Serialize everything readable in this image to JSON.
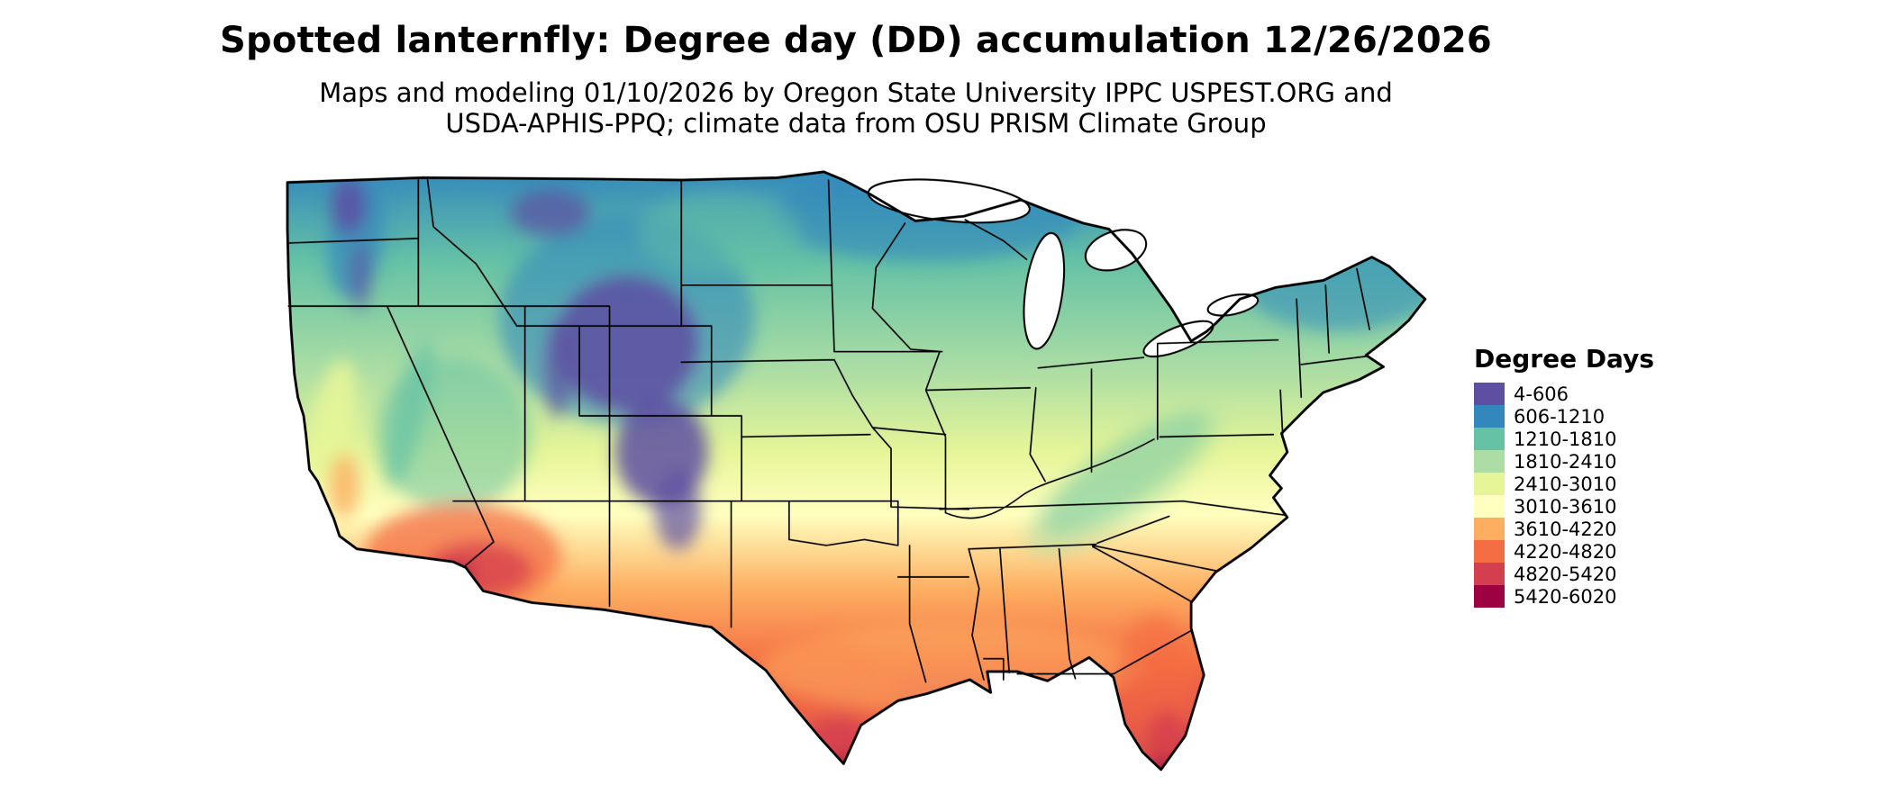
{
  "title": "Spotted lanternfly: Degree day (DD) accumulation 12/26/2026",
  "subtitle_line1": "Maps and modeling 01/10/2026 by Oregon State University IPPC USPEST.ORG and",
  "subtitle_line2": "USDA-APHIS-PPQ; climate data from OSU PRISM Climate Group",
  "map": {
    "region": "Contiguous United States",
    "background_color": "#ffffff",
    "border_color": "#000000"
  },
  "legend": {
    "title": "Degree Days",
    "items": [
      {
        "label": "4-606",
        "color": "#5e4fa2"
      },
      {
        "label": "606-1210",
        "color": "#3288bd"
      },
      {
        "label": "1210-1810",
        "color": "#66c2a5"
      },
      {
        "label": "1810-2410",
        "color": "#abdda4"
      },
      {
        "label": "2410-3010",
        "color": "#e6f598"
      },
      {
        "label": "3010-3610",
        "color": "#ffffbf"
      },
      {
        "label": "3610-4220",
        "color": "#fdae61"
      },
      {
        "label": "4220-4820",
        "color": "#f46d43"
      },
      {
        "label": "4820-5420",
        "color": "#d53e4f"
      },
      {
        "label": "5420-6020",
        "color": "#9e0142"
      }
    ]
  }
}
